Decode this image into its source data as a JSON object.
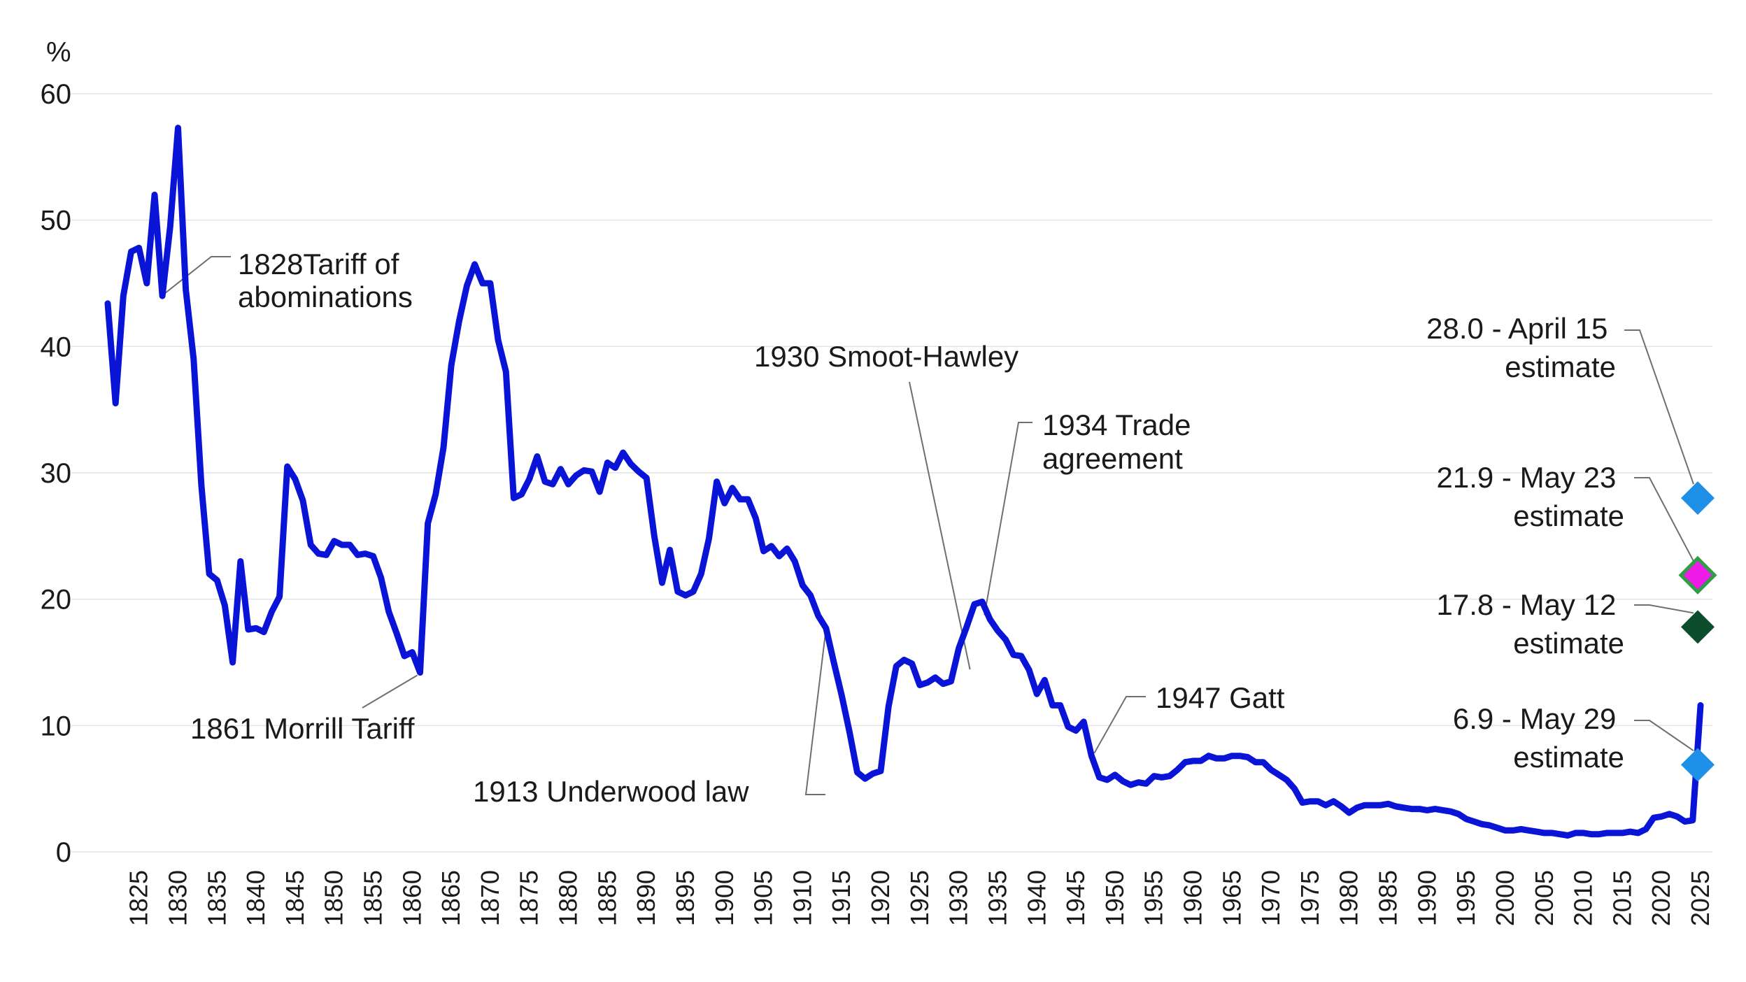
{
  "chart_data": {
    "type": "line",
    "title": "",
    "xlabel": "",
    "ylabel": "%",
    "xlim": [
      1821,
      2025
    ],
    "ylim": [
      0,
      60
    ],
    "y_ticks": [
      0,
      10,
      20,
      30,
      40,
      50,
      60
    ],
    "x_ticks": [
      1825,
      1830,
      1835,
      1840,
      1845,
      1850,
      1855,
      1860,
      1865,
      1870,
      1875,
      1880,
      1885,
      1890,
      1895,
      1900,
      1905,
      1910,
      1915,
      1920,
      1925,
      1930,
      1935,
      1940,
      1945,
      1950,
      1955,
      1960,
      1965,
      1970,
      1975,
      1980,
      1985,
      1990,
      1995,
      2000,
      2005,
      2010,
      2015,
      2020,
      2025
    ],
    "grid": true,
    "series": [
      {
        "color": "#0a14d6",
        "x": [
          1821,
          1822,
          1823,
          1824,
          1825,
          1826,
          1827,
          1828,
          1829,
          1830,
          1831,
          1832,
          1833,
          1834,
          1835,
          1836,
          1837,
          1838,
          1839,
          1840,
          1841,
          1842,
          1843,
          1844,
          1845,
          1846,
          1847,
          1848,
          1849,
          1850,
          1851,
          1852,
          1853,
          1854,
          1855,
          1856,
          1857,
          1858,
          1859,
          1860,
          1861,
          1862,
          1863,
          1864,
          1865,
          1866,
          1867,
          1868,
          1869,
          1870,
          1871,
          1872,
          1873,
          1874,
          1875,
          1876,
          1877,
          1878,
          1879,
          1880,
          1881,
          1882,
          1883,
          1884,
          1885,
          1886,
          1887,
          1888,
          1889,
          1890,
          1891,
          1892,
          1893,
          1894,
          1895,
          1896,
          1897,
          1898,
          1899,
          1900,
          1901,
          1902,
          1903,
          1904,
          1905,
          1906,
          1907,
          1908,
          1909,
          1910,
          1911,
          1912,
          1913,
          1914,
          1915,
          1916,
          1917,
          1918,
          1919,
          1920,
          1921,
          1922,
          1923,
          1924,
          1925,
          1926,
          1927,
          1928,
          1929,
          1930,
          1931,
          1932,
          1933,
          1934,
          1935,
          1936,
          1937,
          1938,
          1939,
          1940,
          1941,
          1942,
          1943,
          1944,
          1945,
          1946,
          1947,
          1948,
          1949,
          1950,
          1951,
          1952,
          1953,
          1954,
          1955,
          1956,
          1957,
          1958,
          1959,
          1960,
          1961,
          1962,
          1963,
          1964,
          1965,
          1966,
          1967,
          1968,
          1969,
          1970,
          1971,
          1972,
          1973,
          1974,
          1975,
          1976,
          1977,
          1978,
          1979,
          1980,
          1981,
          1982,
          1983,
          1984,
          1985,
          1986,
          1987,
          1988,
          1989,
          1990,
          1991,
          1992,
          1993,
          1994,
          1995,
          1996,
          1997,
          1998,
          1999,
          2000,
          2001,
          2002,
          2003,
          2004,
          2005,
          2006,
          2007,
          2008,
          2009,
          2010,
          2011,
          2012,
          2013,
          2014,
          2015,
          2016,
          2017,
          2018,
          2019,
          2020,
          2021,
          2022,
          2023,
          2024,
          2025
        ],
        "values": [
          43.4,
          35.5,
          44.0,
          47.5,
          47.8,
          45.0,
          52.0,
          44.0,
          49.5,
          57.3,
          44.5,
          39.0,
          29.0,
          22.0,
          21.5,
          19.5,
          15.0,
          23.0,
          17.6,
          17.7,
          17.4,
          19.0,
          20.2,
          30.5,
          29.5,
          27.8,
          24.3,
          23.6,
          23.5,
          24.6,
          24.3,
          24.3,
          23.5,
          23.6,
          23.4,
          21.7,
          19.0,
          17.3,
          15.5,
          15.8,
          14.2,
          26.0,
          28.3,
          32.0,
          38.5,
          42.0,
          44.8,
          46.5,
          45.0,
          45.0,
          40.5,
          38.0,
          28.0,
          28.3,
          29.5,
          31.3,
          29.3,
          29.1,
          30.3,
          29.1,
          29.8,
          30.2,
          30.1,
          28.5,
          30.8,
          30.4,
          31.6,
          30.7,
          30.1,
          29.6,
          25.0,
          21.3,
          23.9,
          20.6,
          20.3,
          20.6,
          22.0,
          24.8,
          29.3,
          27.6,
          28.8,
          27.9,
          27.9,
          26.4,
          23.8,
          24.2,
          23.4,
          24.0,
          23.0,
          21.1,
          20.3,
          18.7,
          17.7,
          15.0,
          12.4,
          9.5,
          6.3,
          5.8,
          6.2,
          6.4,
          11.5,
          14.7,
          15.2,
          14.9,
          13.2,
          13.4,
          13.8,
          13.3,
          13.5,
          16.1,
          17.8,
          19.6,
          19.8,
          18.4,
          17.5,
          16.8,
          15.6,
          15.5,
          14.4,
          12.5,
          13.6,
          11.6,
          11.6,
          9.9,
          9.6,
          10.3,
          7.6,
          5.9,
          5.7,
          6.1,
          5.6,
          5.3,
          5.5,
          5.4,
          6.0,
          5.9,
          6.0,
          6.5,
          7.1,
          7.2,
          7.2,
          7.6,
          7.4,
          7.4,
          7.6,
          7.6,
          7.5,
          7.1,
          7.1,
          6.5,
          6.1,
          5.7,
          5.0,
          3.9,
          4.0,
          4.0,
          3.7,
          4.0,
          3.6,
          3.1,
          3.5,
          3.7,
          3.7,
          3.7,
          3.8,
          3.6,
          3.5,
          3.4,
          3.4,
          3.3,
          3.4,
          3.3,
          3.2,
          3.0,
          2.6,
          2.4,
          2.2,
          2.1,
          1.9,
          1.7,
          1.7,
          1.8,
          1.7,
          1.6,
          1.5,
          1.5,
          1.4,
          1.3,
          1.5,
          1.5,
          1.4,
          1.4,
          1.5,
          1.5,
          1.5,
          1.6,
          1.5,
          1.8,
          2.7,
          2.8,
          3.0,
          2.8,
          2.4,
          2.5,
          11.6
        ]
      }
    ],
    "estimates": [
      {
        "label_value": "28.0 - April 15",
        "label_suffix": "estimate",
        "value": 28.0,
        "year": 2025,
        "color": "#1e90e8"
      },
      {
        "label_value": "21.9 - May 23",
        "label_suffix": "estimate",
        "value": 21.9,
        "year": 2025,
        "color": "#ee1ce6",
        "edge": "#2f9e44"
      },
      {
        "label_value": "17.8 - May 12",
        "label_suffix": "estimate",
        "value": 17.8,
        "year": 2025,
        "color": "#0b4d2c"
      },
      {
        "label_value": "6.9 - May 29",
        "label_suffix": "estimate",
        "value": 6.9,
        "year": 2025,
        "color": "#1e90e8"
      }
    ],
    "annotations": [
      {
        "lines": [
          "1828Tariff of",
          "abominations"
        ],
        "year": 1828,
        "value": 44.0
      },
      {
        "lines": [
          "1861 Morrill Tariff"
        ],
        "year": 1861,
        "value": 14.2
      },
      {
        "lines": [
          "1913 Underwood law"
        ],
        "year": 1913,
        "value": 17.7
      },
      {
        "lines": [
          "1930 Smoot-Hawley"
        ],
        "year": 1930,
        "value": 16.1
      },
      {
        "lines": [
          "1934 Trade",
          "agreement"
        ],
        "year": 1934,
        "value": 18.4
      },
      {
        "lines": [
          "1947 Gatt"
        ],
        "year": 1947,
        "value": 7.6
      }
    ]
  }
}
